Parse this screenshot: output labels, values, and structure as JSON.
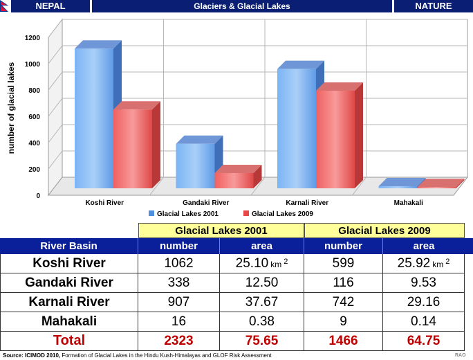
{
  "header": {
    "left_tag": "NEPAL",
    "title": "Glaciers & Glacial Lakes",
    "right_tag": "NATURE"
  },
  "chart_data": {
    "type": "bar",
    "title": "",
    "xlabel": "",
    "ylabel": "number of glacial lakes",
    "ylim": [
      0,
      1200
    ],
    "yticks": [
      "0",
      "200",
      "400",
      "600",
      "800",
      "1000",
      "1200"
    ],
    "categories": [
      "Koshi River",
      "Gandaki River",
      "Karnali River",
      "Mahakali"
    ],
    "series": [
      {
        "name": "Glacial Lakes 2001",
        "values": [
          1062,
          338,
          907,
          16
        ],
        "color": "#4f8fe0"
      },
      {
        "name": "Glacial Lakes 2009",
        "values": [
          599,
          116,
          742,
          9
        ],
        "color": "#e84848"
      }
    ],
    "grid": true,
    "legend": "bottom-center",
    "style": "3d"
  },
  "table": {
    "group_2001": "Glacial Lakes 2001",
    "group_2009": "Glacial Lakes 2009",
    "col_basin": "River Basin",
    "col_number": "number",
    "col_area": "area",
    "unit": "km",
    "unit_sup": "2",
    "rows": [
      {
        "basin": "Koshi River",
        "n2001": "1062",
        "a2001": "25.10",
        "n2009": "599",
        "a2009": "25.92"
      },
      {
        "basin": "Gandaki River",
        "n2001": "338",
        "a2001": "12.50",
        "n2009": "116",
        "a2009": "9.53"
      },
      {
        "basin": "Karnali River",
        "n2001": "907",
        "a2001": "37.67",
        "n2009": "742",
        "a2009": "29.16"
      },
      {
        "basin": "Mahakali",
        "n2001": "16",
        "a2001": "0.38",
        "n2009": "9",
        "a2009": "0.14"
      }
    ],
    "total": {
      "label": "Total",
      "n2001": "2323",
      "a2001": "75.65",
      "n2009": "1466",
      "a2009": "64.75"
    }
  },
  "source": {
    "label": "Source: ICIMOD 2010,",
    "text": " Formation of Glacial Lakes in the Hindu Kush-Himalayas and GLOF Risk Assessment"
  },
  "signature": "RAO",
  "colors": {
    "header_bg": "#0a1f73",
    "table_header_bg": "#0a1f9a",
    "group_bg": "#ffff99",
    "total_text": "#c00000"
  }
}
